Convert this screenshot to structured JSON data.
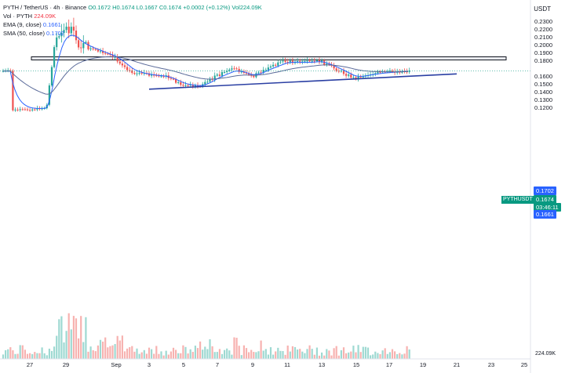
{
  "legend": {
    "line1": {
      "symbol": "PYTH / TetherUS · 4h · Binance",
      "o": "O0.1672",
      "h": "H0.1674",
      "l": "L0.1667",
      "c": "C0.1674",
      "chg": "+0.0002 (+0.12%)",
      "vol": "Vol224.09K"
    },
    "line2": {
      "label": "Vol · PYTH",
      "value": "224.09K"
    },
    "line3": {
      "label": "EMA (9, close)",
      "value": "0.1661"
    },
    "line4": {
      "label": "SMA (50, close)",
      "value": "0.1702"
    }
  },
  "currency": "USDT",
  "price_axis": [
    "0.2300",
    "0.2200",
    "0.2100",
    "0.2000",
    "0.1900",
    "0.1800",
    "0.1600",
    "0.1500",
    "0.1400",
    "0.1300",
    "0.1200"
  ],
  "date_axis": [
    "27",
    "29",
    "Sep",
    "3",
    "5",
    "7",
    "9",
    "11",
    "13",
    "15",
    "17",
    "19",
    "21",
    "23",
    "25"
  ],
  "tags": {
    "sma": "0.1702",
    "ticker": "PYTHUSDT",
    "price": "0.1674",
    "countdown": "03:46:11",
    "ema": "0.1661",
    "volume": "224.09K"
  },
  "colors": {
    "up": "#26a69a",
    "down": "#ef5350",
    "ema": "#2962ff",
    "sma": "#5b6b9a",
    "trendline": "#2a3fa3",
    "zone": "#e9eaee"
  },
  "chart_data": {
    "type": "candlestick",
    "title": "PYTH / TetherUS · 4h · Binance",
    "ylim": [
      0.1156,
      0.2344
    ],
    "price_ticks": [
      0.23,
      0.22,
      0.21,
      0.2,
      0.19,
      0.18,
      0.16,
      0.15,
      0.14,
      0.13,
      0.12
    ],
    "last_price": 0.1674,
    "resistance_zone": [
      0.1815,
      0.1855
    ],
    "trendline": [
      {
        "date": "Sep 3",
        "price": 0.1442
      },
      {
        "date": "Sep 21",
        "price": 0.1637
      }
    ],
    "close_path": [
      {
        "date": "Aug 26",
        "close": 0.1175
      },
      {
        "date": "Aug 27",
        "close": 0.118
      },
      {
        "date": "Aug 28",
        "close": 0.1205
      },
      {
        "date": "Aug 28",
        "close": 0.205
      },
      {
        "date": "Aug 29",
        "close": 0.225
      },
      {
        "date": "Aug 29",
        "close": 0.215
      },
      {
        "date": "Aug 30",
        "close": 0.2
      },
      {
        "date": "Aug 31",
        "close": 0.192
      },
      {
        "date": "Sep 1",
        "close": 0.184
      },
      {
        "date": "Sep 2",
        "close": 0.165
      },
      {
        "date": "Sep 3",
        "close": 0.162
      },
      {
        "date": "Sep 4",
        "close": 0.16
      },
      {
        "date": "Sep 5",
        "close": 0.149
      },
      {
        "date": "Sep 6",
        "close": 0.148
      },
      {
        "date": "Sep 7",
        "close": 0.162
      },
      {
        "date": "Sep 8",
        "close": 0.17
      },
      {
        "date": "Sep 9",
        "close": 0.16
      },
      {
        "date": "Sep 10",
        "close": 0.172
      },
      {
        "date": "Sep 11",
        "close": 0.18
      },
      {
        "date": "Sep 12",
        "close": 0.178
      },
      {
        "date": "Sep 13",
        "close": 0.18
      },
      {
        "date": "Sep 14",
        "close": 0.169
      },
      {
        "date": "Sep 15",
        "close": 0.158
      },
      {
        "date": "Sep 16",
        "close": 0.164
      },
      {
        "date": "Sep 17",
        "close": 0.166
      },
      {
        "date": "Sep 18",
        "close": 0.1674
      }
    ]
  }
}
